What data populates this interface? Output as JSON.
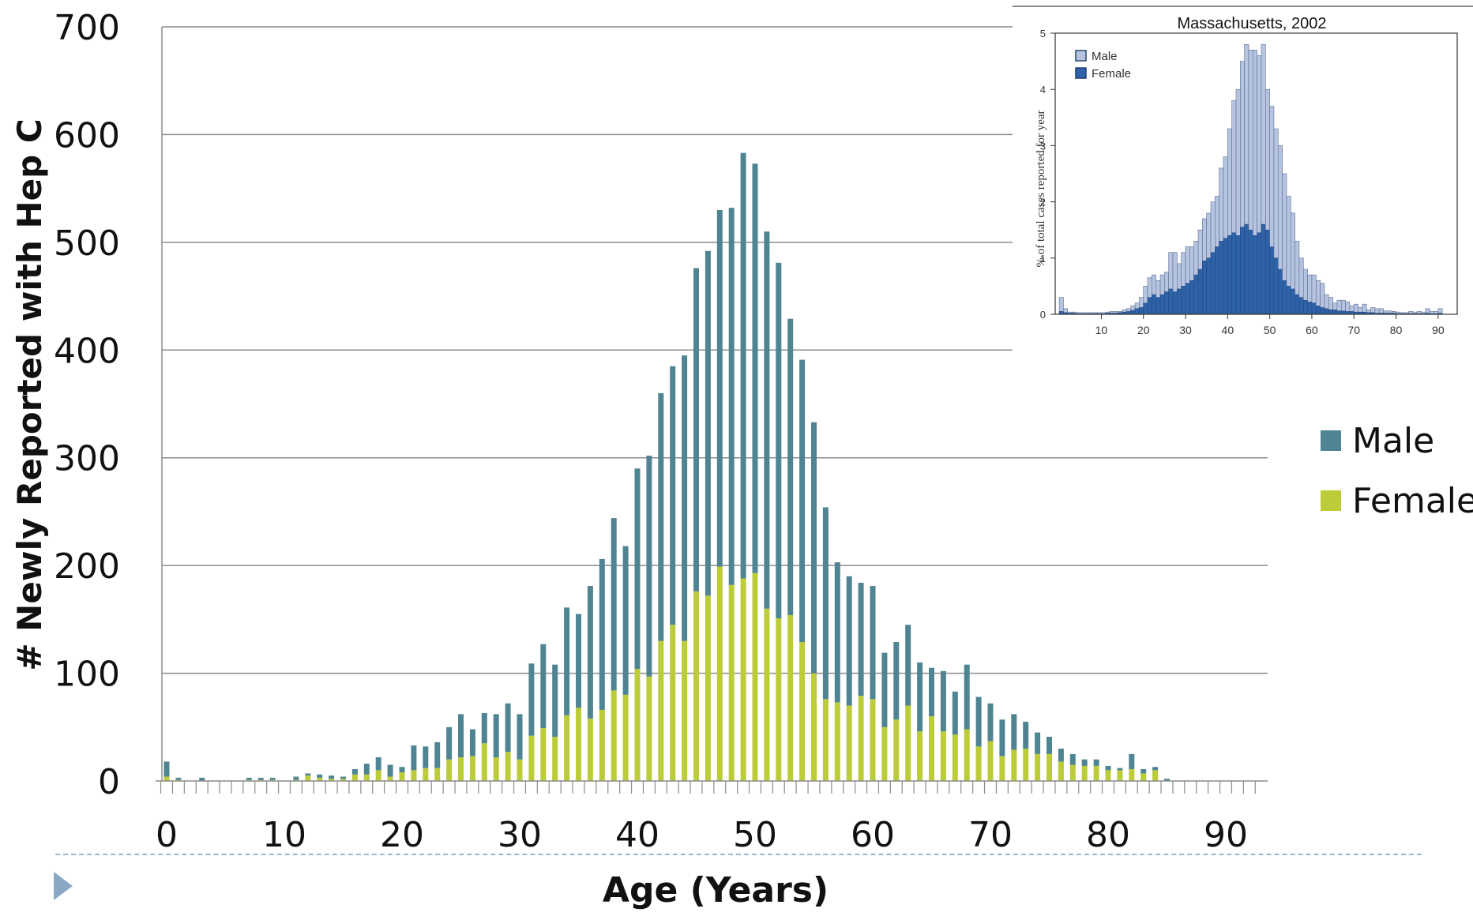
{
  "chart_data": [
    {
      "type": "bar",
      "stacked": true,
      "title": "",
      "xlabel": "Age (Years)",
      "ylabel": "# Newly Reported with Hep C",
      "ylim": [
        0,
        700
      ],
      "yticks": [
        0,
        100,
        200,
        300,
        400,
        500,
        600,
        700
      ],
      "xticks": [
        0,
        10,
        20,
        30,
        40,
        50,
        60,
        70,
        80,
        90
      ],
      "xtick_labels": [
        "0",
        "10",
        "20",
        "30",
        "40",
        "50",
        "60",
        "70",
        "80",
        "90"
      ],
      "grid": true,
      "legend": "right",
      "x": [
        0,
        1,
        2,
        3,
        4,
        5,
        6,
        7,
        8,
        9,
        10,
        11,
        12,
        13,
        14,
        15,
        16,
        17,
        18,
        19,
        20,
        21,
        22,
        23,
        24,
        25,
        26,
        27,
        28,
        29,
        30,
        31,
        32,
        33,
        34,
        35,
        36,
        37,
        38,
        39,
        40,
        41,
        42,
        43,
        44,
        45,
        46,
        47,
        48,
        49,
        50,
        51,
        52,
        53,
        54,
        55,
        56,
        57,
        58,
        59,
        60,
        61,
        62,
        63,
        64,
        65,
        66,
        67,
        68,
        69,
        70,
        71,
        72,
        73,
        74,
        75,
        76,
        77,
        78,
        79,
        80,
        81,
        82,
        83,
        84,
        85,
        86,
        87,
        88,
        89,
        90,
        91,
        92
      ],
      "series": [
        {
          "name": "Male",
          "color": "#4f8493",
          "values": [
            14,
            2,
            0,
            3,
            0,
            0,
            0,
            2,
            2,
            2,
            0,
            3,
            2,
            3,
            3,
            2,
            5,
            10,
            12,
            11,
            5,
            23,
            20,
            24,
            30,
            40,
            25,
            28,
            40,
            45,
            42,
            67,
            78,
            67,
            100,
            87,
            123,
            140,
            160,
            138,
            186,
            205,
            230,
            240,
            265,
            300,
            320,
            331,
            350,
            395,
            380,
            350,
            330,
            275,
            262,
            233,
            178,
            130,
            120,
            105,
            105,
            69,
            72,
            75,
            64,
            45,
            56,
            40,
            60,
            46,
            35,
            34,
            33,
            25,
            20,
            16,
            12,
            10,
            6,
            6,
            4,
            2,
            14,
            4,
            3,
            2,
            0,
            0,
            0,
            0,
            0,
            0,
            0
          ]
        },
        {
          "name": "Female",
          "color": "#bccb38",
          "values": [
            4,
            1,
            0,
            0,
            0,
            0,
            0,
            1,
            1,
            1,
            0,
            1,
            5,
            3,
            2,
            2,
            6,
            6,
            10,
            4,
            8,
            10,
            12,
            12,
            20,
            22,
            23,
            35,
            22,
            27,
            20,
            42,
            49,
            41,
            61,
            68,
            58,
            66,
            84,
            80,
            104,
            97,
            130,
            145,
            130,
            176,
            172,
            199,
            182,
            188,
            193,
            160,
            151,
            154,
            129,
            100,
            76,
            73,
            70,
            79,
            76,
            50,
            57,
            70,
            46,
            60,
            46,
            43,
            48,
            32,
            37,
            23,
            29,
            30,
            25,
            25,
            18,
            15,
            14,
            14,
            10,
            10,
            11,
            7,
            10,
            0,
            0,
            0,
            0,
            0,
            0,
            0,
            0
          ]
        }
      ]
    },
    {
      "type": "bar",
      "stacked": false,
      "title": "Massachusetts, 2002",
      "xlabel": "",
      "ylabel": "% of total cases reported for year",
      "ylim": [
        0,
        5
      ],
      "yticks": [
        0,
        1,
        2,
        3,
        4,
        5
      ],
      "xticks": [
        10,
        20,
        30,
        40,
        50,
        60,
        70,
        80,
        90
      ],
      "xtick_labels": [
        "10",
        "20",
        "30",
        "40",
        "50",
        "60",
        "70",
        "80",
        "90"
      ],
      "legend": "top-left",
      "x": [
        1,
        2,
        3,
        4,
        5,
        6,
        7,
        8,
        9,
        10,
        11,
        12,
        13,
        14,
        15,
        16,
        17,
        18,
        19,
        20,
        21,
        22,
        23,
        24,
        25,
        26,
        27,
        28,
        29,
        30,
        31,
        32,
        33,
        34,
        35,
        36,
        37,
        38,
        39,
        40,
        41,
        42,
        43,
        44,
        45,
        46,
        47,
        48,
        49,
        50,
        51,
        52,
        53,
        54,
        55,
        56,
        57,
        58,
        59,
        60,
        61,
        62,
        63,
        64,
        65,
        66,
        67,
        68,
        69,
        70,
        71,
        72,
        73,
        74,
        75,
        76,
        77,
        78,
        79,
        80,
        81,
        82,
        83,
        84,
        85,
        86,
        87,
        88,
        89,
        90,
        91
      ],
      "series": [
        {
          "name": "Male",
          "color": "#b6c4e0",
          "values": [
            0.3,
            0.1,
            0.04,
            0.04,
            0.03,
            0.03,
            0.03,
            0.03,
            0.03,
            0.03,
            0.03,
            0.04,
            0.05,
            0.05,
            0.05,
            0.08,
            0.1,
            0.15,
            0.2,
            0.3,
            0.5,
            0.65,
            0.7,
            0.6,
            0.7,
            0.75,
            1.1,
            1.1,
            0.9,
            1.1,
            1.2,
            1.2,
            1.3,
            1.5,
            1.7,
            1.8,
            2.0,
            2.1,
            2.6,
            2.8,
            3.3,
            3.8,
            4.0,
            4.5,
            4.8,
            4.7,
            4.7,
            4.6,
            4.8,
            4.0,
            3.7,
            3.3,
            3.0,
            2.5,
            2.1,
            1.8,
            1.3,
            1.0,
            0.8,
            0.7,
            0.7,
            0.6,
            0.55,
            0.35,
            0.3,
            0.2,
            0.25,
            0.25,
            0.22,
            0.15,
            0.18,
            0.12,
            0.18,
            0.08,
            0.12,
            0.1,
            0.1,
            0.06,
            0.06,
            0.05,
            0.04,
            0.03,
            0.03,
            0.05,
            0.04,
            0.05,
            0.04,
            0.1,
            0.05,
            0.05,
            0.1
          ]
        },
        {
          "name": "Female",
          "color": "#2e62a8",
          "values": [
            0.05,
            0.03,
            0.02,
            0.02,
            0.01,
            0.01,
            0.01,
            0.01,
            0.01,
            0.01,
            0.01,
            0.02,
            0.02,
            0.02,
            0.03,
            0.04,
            0.05,
            0.07,
            0.1,
            0.12,
            0.2,
            0.3,
            0.35,
            0.3,
            0.35,
            0.4,
            0.45,
            0.4,
            0.45,
            0.5,
            0.55,
            0.6,
            0.7,
            0.8,
            0.95,
            1.0,
            1.1,
            1.2,
            1.3,
            1.35,
            1.4,
            1.45,
            1.4,
            1.55,
            1.6,
            1.5,
            1.4,
            1.45,
            1.6,
            1.5,
            1.2,
            1.0,
            0.8,
            0.6,
            0.5,
            0.45,
            0.35,
            0.3,
            0.25,
            0.22,
            0.2,
            0.15,
            0.12,
            0.1,
            0.08,
            0.08,
            0.06,
            0.06,
            0.05,
            0.05,
            0.04,
            0.04,
            0.04,
            0.03,
            0.03,
            0.02,
            0.02,
            0.02,
            0.02,
            0.02,
            0.01,
            0.01,
            0.01,
            0.01,
            0.01,
            0.01,
            0.01,
            0.02,
            0.01,
            0.01,
            0.02
          ]
        }
      ]
    }
  ],
  "legend": {
    "male_label": "Male",
    "female_label": "Female",
    "male_color": "#4f8493",
    "female_color": "#bccb38"
  }
}
